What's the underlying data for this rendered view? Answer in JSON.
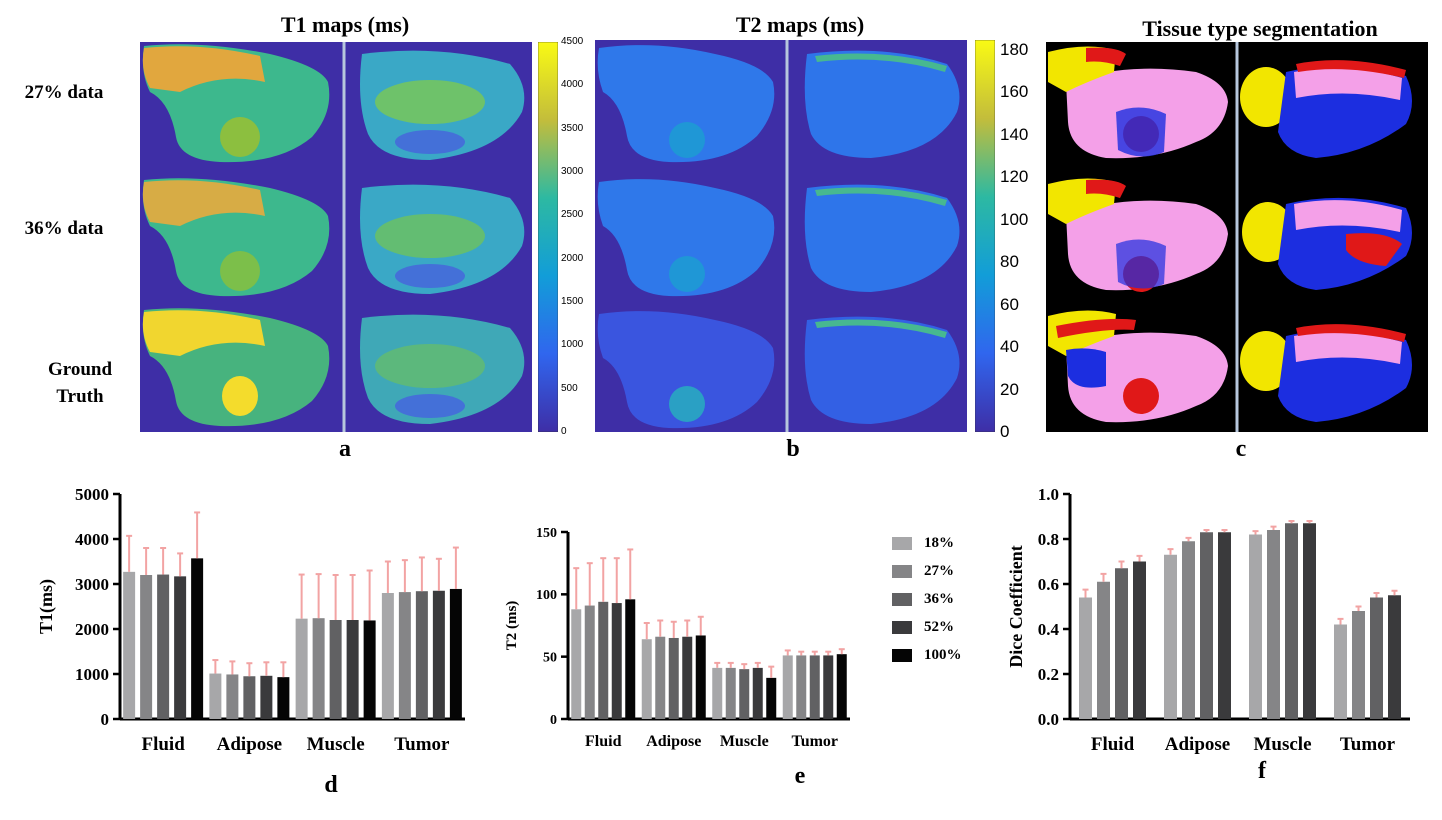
{
  "titles": {
    "t1": "T1 maps (ms)",
    "t2": "T2 maps (ms)",
    "seg": "Tissue type segmentation"
  },
  "row_labels": [
    "27% data",
    "36% data",
    "Ground Truth"
  ],
  "panel_labels": [
    "a",
    "b",
    "c",
    "d",
    "e",
    "f"
  ],
  "colorbar_t1": {
    "ticks": [
      "4500",
      "4000",
      "3500",
      "3000",
      "2500",
      "2000",
      "1500",
      "1000",
      "500",
      "0"
    ]
  },
  "colorbar_t2": {
    "ticks": [
      "180",
      "160",
      "140",
      "120",
      "100",
      "80",
      "60",
      "40",
      "20",
      "0"
    ]
  },
  "colors": {
    "map_background": "#3e2ea6",
    "seg_fluid": "#e01818",
    "seg_adipose": "#f2e600",
    "seg_muscle": "#f4a0e8",
    "seg_tumor": "#1c2ee0",
    "errorbar": "#f2a3a3"
  },
  "legend": {
    "items": [
      "18%",
      "27%",
      "36%",
      "52%",
      "100%"
    ],
    "colors": [
      "#a7a7a9",
      "#858587",
      "#616163",
      "#3a3a3c",
      "#050505"
    ]
  },
  "chart_data": [
    {
      "type": "bar",
      "panel": "d",
      "title": "",
      "xlabel": "",
      "ylabel": "T1(ms)",
      "ylim": [
        0,
        5000
      ],
      "yticks": [
        0,
        1000,
        2000,
        3000,
        4000,
        5000
      ],
      "categories": [
        "Fluid",
        "Adipose",
        "Muscle",
        "Tumor"
      ],
      "series": [
        {
          "name": "18%",
          "values": [
            3270,
            1010,
            2230,
            2800
          ],
          "errors": [
            800,
            300,
            980,
            700
          ]
        },
        {
          "name": "27%",
          "values": [
            3200,
            990,
            2240,
            2820
          ],
          "errors": [
            600,
            290,
            980,
            710
          ]
        },
        {
          "name": "36%",
          "values": [
            3210,
            950,
            2200,
            2840
          ],
          "errors": [
            590,
            290,
            1000,
            750
          ]
        },
        {
          "name": "52%",
          "values": [
            3170,
            960,
            2200,
            2850
          ],
          "errors": [
            510,
            300,
            1000,
            710
          ]
        },
        {
          "name": "100%",
          "values": [
            3570,
            930,
            2190,
            2890
          ],
          "errors": [
            1020,
            330,
            1110,
            920
          ]
        }
      ]
    },
    {
      "type": "bar",
      "panel": "e",
      "title": "",
      "xlabel": "",
      "ylabel": "T2 (ms)",
      "ylim": [
        0,
        150
      ],
      "yticks": [
        0,
        50,
        100,
        150
      ],
      "categories": [
        "Fluid",
        "Adipose",
        "Muscle",
        "Tumor"
      ],
      "series": [
        {
          "name": "18%",
          "values": [
            88,
            64,
            41,
            51
          ],
          "errors": [
            33,
            13,
            4,
            4
          ]
        },
        {
          "name": "27%",
          "values": [
            91,
            66,
            41,
            51
          ],
          "errors": [
            34,
            13,
            4,
            3
          ]
        },
        {
          "name": "36%",
          "values": [
            94,
            65,
            40,
            51
          ],
          "errors": [
            35,
            13,
            4,
            3
          ]
        },
        {
          "name": "52%",
          "values": [
            93,
            66,
            41,
            51
          ],
          "errors": [
            36,
            13,
            4,
            3
          ]
        },
        {
          "name": "100%",
          "values": [
            96,
            67,
            33,
            52
          ],
          "errors": [
            40,
            15,
            9,
            4
          ]
        }
      ]
    },
    {
      "type": "bar",
      "panel": "f",
      "title": "",
      "xlabel": "",
      "ylabel": "Dice Coefficient",
      "ylim": [
        0,
        1
      ],
      "yticks": [
        "0.0",
        "0.2",
        "0.4",
        "0.6",
        "0.8",
        "1.0"
      ],
      "categories": [
        "Fluid",
        "Adipose",
        "Muscle",
        "Tumor"
      ],
      "series": [
        {
          "name": "18%",
          "values": [
            0.54,
            0.73,
            0.82,
            0.42
          ],
          "errors": [
            0.035,
            0.025,
            0.015,
            0.025
          ]
        },
        {
          "name": "27%",
          "values": [
            0.61,
            0.79,
            0.84,
            0.48
          ],
          "errors": [
            0.035,
            0.015,
            0.015,
            0.02
          ]
        },
        {
          "name": "36%",
          "values": [
            0.67,
            0.83,
            0.87,
            0.54
          ],
          "errors": [
            0.03,
            0.01,
            0.01,
            0.02
          ]
        },
        {
          "name": "52%",
          "values": [
            0.7,
            0.83,
            0.87,
            0.55
          ],
          "errors": [
            0.025,
            0.01,
            0.01,
            0.02
          ]
        }
      ]
    }
  ]
}
